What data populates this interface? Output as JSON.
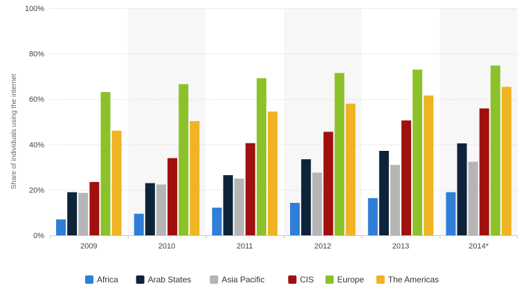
{
  "chart_data": {
    "type": "bar",
    "categories": [
      "2009",
      "2010",
      "2011",
      "2012",
      "2013",
      "2014*"
    ],
    "ylabel": "Share of individuals using the internet",
    "xlabel": "",
    "ylim": [
      0,
      100
    ],
    "yticks": [
      "0%",
      "20%",
      "40%",
      "60%",
      "80%",
      "100%"
    ],
    "ytick_values": [
      0,
      20,
      40,
      60,
      80,
      100
    ],
    "grid": true,
    "legend_position": "bottom",
    "series": [
      {
        "name": "Africa",
        "color": "#2f7ed8",
        "values": [
          7.0,
          9.5,
          12.2,
          14.3,
          16.4,
          19.0
        ]
      },
      {
        "name": "Arab States",
        "color": "#0d233a",
        "values": [
          19.0,
          23.0,
          26.5,
          33.5,
          37.2,
          40.5
        ]
      },
      {
        "name": "Asia Pacific",
        "color": "#b5b5b5",
        "values": [
          18.7,
          22.4,
          25.0,
          27.6,
          31.0,
          32.4
        ]
      },
      {
        "name": "CIS",
        "color": "#a10f0f",
        "values": [
          23.5,
          34.0,
          40.6,
          45.6,
          50.6,
          55.9
        ]
      },
      {
        "name": "Europe",
        "color": "#8cc229",
        "values": [
          63.1,
          66.6,
          69.2,
          71.5,
          73.0,
          74.8
        ]
      },
      {
        "name": "The Americas",
        "color": "#f0b323",
        "values": [
          46.1,
          50.3,
          54.5,
          58.0,
          61.6,
          65.4
        ]
      }
    ]
  }
}
